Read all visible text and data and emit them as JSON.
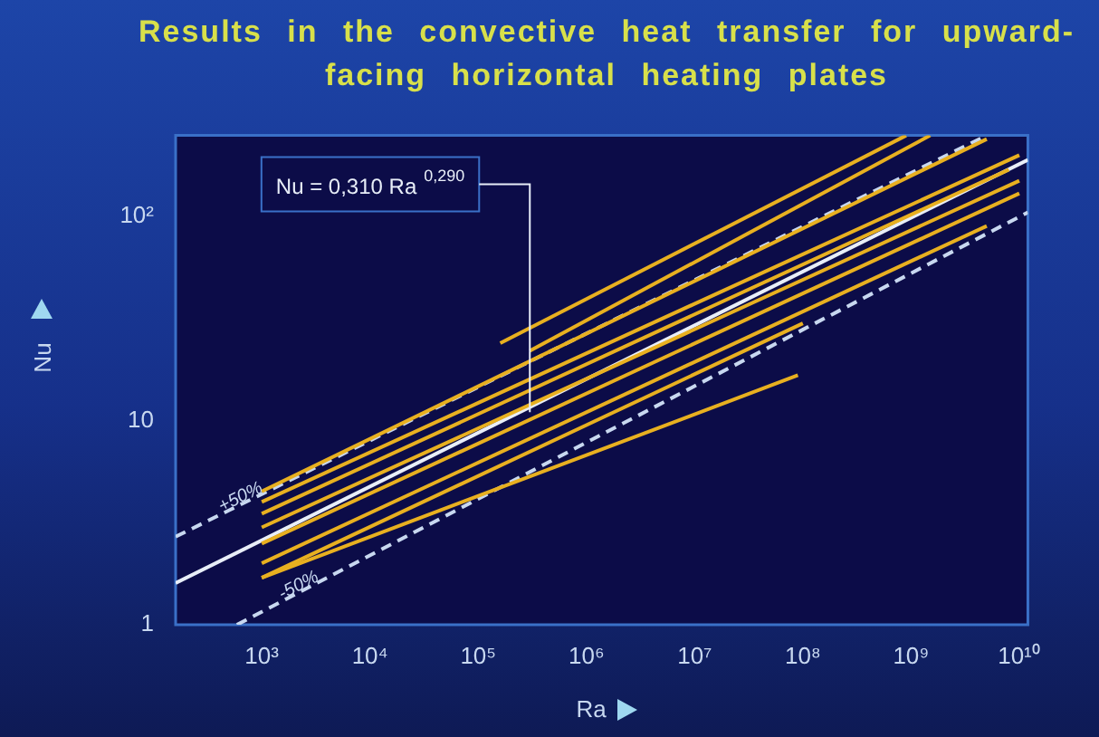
{
  "chart_data": {
    "type": "line",
    "title": "Results in the convective heat transfer for upward-facing horizontal heating plates",
    "xlabel": "Ra",
    "ylabel": "Nu",
    "log": "xy",
    "grid": false,
    "legend": false,
    "marker": "none",
    "xlim": [
      160,
      12000000000
    ],
    "ylim": [
      1,
      250
    ],
    "xticks": [
      {
        "value": 1000,
        "label": "10³"
      },
      {
        "value": 10000,
        "label": "10⁴"
      },
      {
        "value": 100000,
        "label": "10⁵"
      },
      {
        "value": 1000000,
        "label": "10⁶"
      },
      {
        "value": 10000000,
        "label": "10⁷"
      },
      {
        "value": 100000000,
        "label": "10⁸"
      },
      {
        "value": 1000000000,
        "label": "10⁹"
      },
      {
        "value": 10000000000,
        "label": "10¹⁰"
      }
    ],
    "yticks": [
      1,
      10,
      {
        "value": 100,
        "label": "10²"
      }
    ],
    "annotations": [
      {
        "text": "Nu = 0,310 Ra$^{0,290}$",
        "x": 300000,
        "y": 11
      }
    ],
    "series": [
      {
        "color": "#e8b020",
        "line_style": "solid",
        "x": [
          160000,
          900000000
        ],
        "values": [
          24,
          250
        ]
      },
      {
        "color": "#e8b020",
        "line_style": "solid",
        "x": [
          300000,
          1500000000
        ],
        "values": [
          22,
          250
        ]
      },
      {
        "color": "#e8b020",
        "line_style": "solid",
        "x": [
          1000,
          5000000000
        ],
        "values": [
          4.5,
          240
        ]
      },
      {
        "color": "#e8b020",
        "line_style": "solid",
        "x": [
          1000,
          10000000000
        ],
        "values": [
          4,
          200
        ]
      },
      {
        "color": "#e8b020",
        "line_style": "solid",
        "x": [
          1000,
          8000000000
        ],
        "values": [
          3.5,
          170
        ]
      },
      {
        "color": "#e8b020",
        "line_style": "solid",
        "x": [
          1000,
          10000000000
        ],
        "values": [
          3,
          150
        ]
      },
      {
        "color": "#e8b020",
        "line_style": "solid",
        "x": [
          1000,
          10000000000
        ],
        "values": [
          2.5,
          130
        ]
      },
      {
        "color": "#e8b020",
        "line_style": "solid",
        "x": [
          1000,
          5000000000
        ],
        "values": [
          2,
          90
        ]
      },
      {
        "color": "#e8b020",
        "line_style": "solid",
        "x": [
          1000,
          100000000
        ],
        "values": [
          1.7,
          30
        ]
      },
      {
        "color": "#e8b020",
        "line_style": "solid",
        "x": [
          1000,
          90000000
        ],
        "values": [
          1.7,
          16.7
        ]
      },
      {
        "color": "#e8eef8",
        "line_style": "solid",
        "x": [
          160,
          12000000000
        ],
        "values": [
          1.6,
          190
        ]
      },
      {
        "name": "+50%",
        "color": "#c8d8f0",
        "line_style": "dashed",
        "x": [
          160,
          5000000000
        ],
        "values": [
          2.7,
          250
        ]
      },
      {
        "name": "-50%",
        "color": "#c8d8f0",
        "line_style": "dashed",
        "x": [
          590,
          12000000000
        ],
        "values": [
          1,
          105
        ]
      }
    ]
  }
}
